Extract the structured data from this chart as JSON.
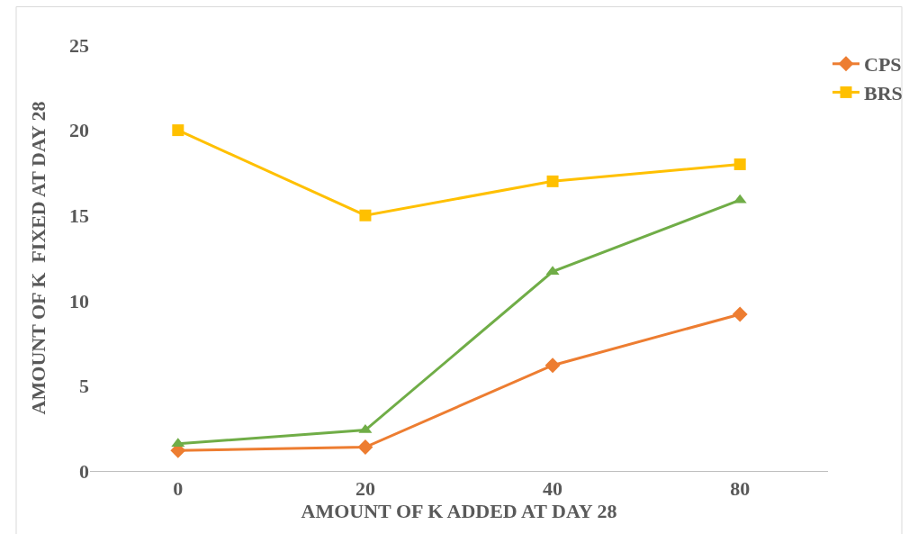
{
  "chart_data": {
    "type": "line",
    "xlabel": "AMOUNT OF K ADDED AT DAY 28",
    "ylabel": "AMOUNT OF K  FIXED AT DAY 28",
    "categories": [
      "0",
      "20",
      "40",
      "80"
    ],
    "series": [
      {
        "name": "CPS",
        "color": "#ed7d31",
        "marker": "diamond",
        "values": [
          1.2,
          1.4,
          6.2,
          9.2
        ]
      },
      {
        "name": "BRS",
        "color": "#ffc000",
        "marker": "square",
        "values": [
          20.0,
          15.0,
          17.0,
          18.0
        ]
      },
      {
        "color": "#70ad47",
        "marker": "triangle",
        "values": [
          1.6,
          2.4,
          11.7,
          15.9
        ]
      }
    ],
    "ylim": [
      0,
      25
    ],
    "yticks": [
      0,
      5,
      10,
      15,
      20,
      25
    ],
    "grid": false,
    "legend": "top right",
    "line_style": "solid"
  }
}
